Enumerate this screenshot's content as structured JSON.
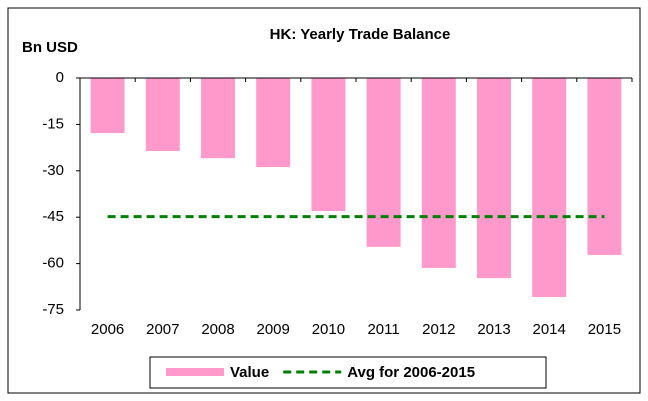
{
  "chart_data": {
    "type": "bar",
    "title": "HK: Yearly Trade Balance",
    "y_label": "Bn USD",
    "categories": [
      "2006",
      "2007",
      "2008",
      "2009",
      "2010",
      "2011",
      "2012",
      "2013",
      "2014",
      "2015"
    ],
    "series": [
      {
        "name": "Value",
        "type": "bar",
        "color": "#ff99cc",
        "values": [
          -17.8,
          -23.6,
          -25.9,
          -28.8,
          -43.0,
          -54.6,
          -61.4,
          -64.7,
          -70.8,
          -57.2
        ]
      },
      {
        "name": "Avg for 2006-2015",
        "type": "line",
        "color": "#008000",
        "dashed": true,
        "values": [
          -44.8,
          -44.8,
          -44.8,
          -44.8,
          -44.8,
          -44.8,
          -44.8,
          -44.8,
          -44.8,
          -44.8
        ]
      }
    ],
    "ylim": [
      -75,
      0
    ],
    "yticks": [
      0,
      -15,
      -30,
      -45,
      -60,
      -75
    ],
    "grid": false,
    "legend": "bottom"
  }
}
